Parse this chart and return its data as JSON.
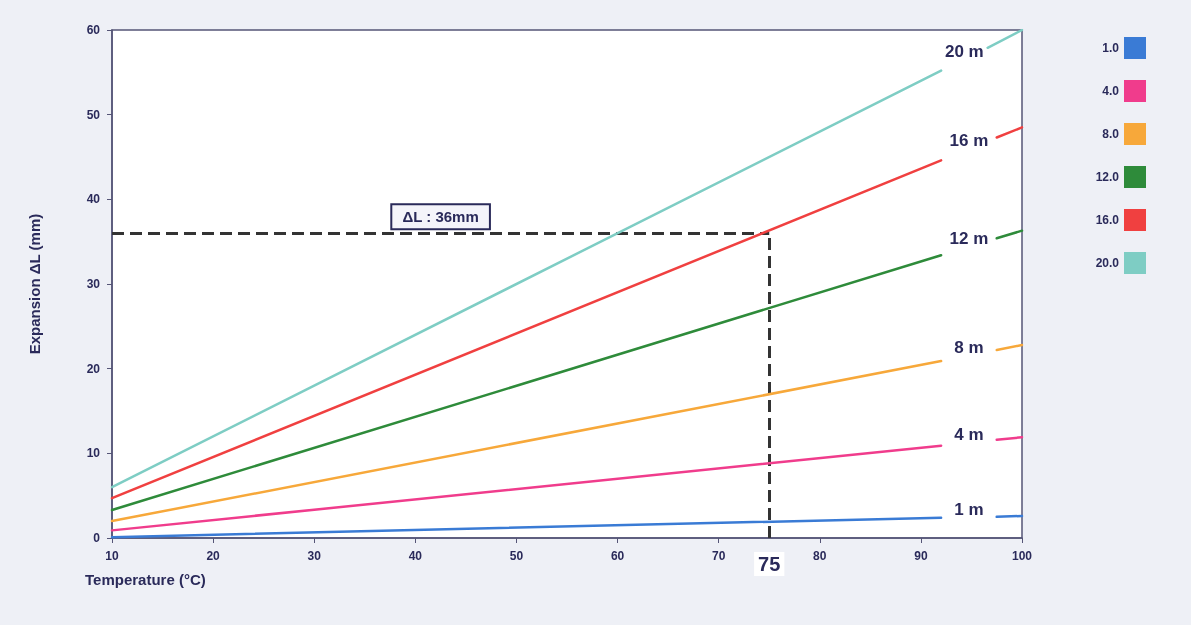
{
  "chart_data": {
    "type": "line",
    "xlabel": "Temperature (°C)",
    "ylabel": "Expansion ΔL (mm)",
    "xlim": [
      10,
      100
    ],
    "xticks": [
      10,
      20,
      30,
      40,
      50,
      60,
      70,
      80,
      90,
      100
    ],
    "ylim": [
      0,
      60
    ],
    "yticks": [
      0,
      10,
      20,
      30,
      40,
      50,
      60
    ],
    "grid": false,
    "legend": "top right",
    "marker": "none",
    "line_style": "solid",
    "series": [
      {
        "name": "1.0",
        "color": "#3a7bd5",
        "x": [
          10,
          92,
          92.01,
          97.5,
          100
        ],
        "values": [
          0.1,
          2.4,
          null,
          2.5,
          2.6
        ]
      },
      {
        "name": "4.0",
        "color": "#f03c8c",
        "x": [
          10,
          92,
          92.01,
          97.5,
          100
        ],
        "values": [
          0.9,
          10.9,
          null,
          11.6,
          11.9
        ]
      },
      {
        "name": "8.0",
        "color": "#f7a83a",
        "x": [
          10,
          92,
          92.01,
          97.5,
          100
        ],
        "values": [
          2.0,
          20.9,
          null,
          22.2,
          22.8
        ]
      },
      {
        "name": "12.0",
        "color": "#2e8b3a",
        "x": [
          10,
          92,
          92.01,
          97.5,
          100
        ],
        "values": [
          3.3,
          33.4,
          null,
          35.4,
          36.3
        ]
      },
      {
        "name": "16.0",
        "color": "#f04040",
        "x": [
          10,
          92,
          92.01,
          97.5,
          100
        ],
        "values": [
          4.7,
          44.6,
          null,
          47.3,
          48.5
        ]
      },
      {
        "name": "20.0",
        "color": "#7ecdc4",
        "x": [
          10,
          92,
          92.01,
          96.6,
          100
        ],
        "values": [
          6.0,
          55.2,
          null,
          57.9,
          60.0
        ]
      }
    ],
    "ref_lines": [
      {
        "axis": "y",
        "value": 36,
        "label": "ΔL : 36mm",
        "color": "#333333",
        "line_style": "dashed"
      },
      {
        "axis": "x",
        "value": 75,
        "label": "75",
        "color": "#333333",
        "line_style": "dashed"
      }
    ],
    "annotations": [
      "1 m",
      "4 m",
      "8 m",
      "12 m",
      "16 m",
      "20 m"
    ]
  }
}
